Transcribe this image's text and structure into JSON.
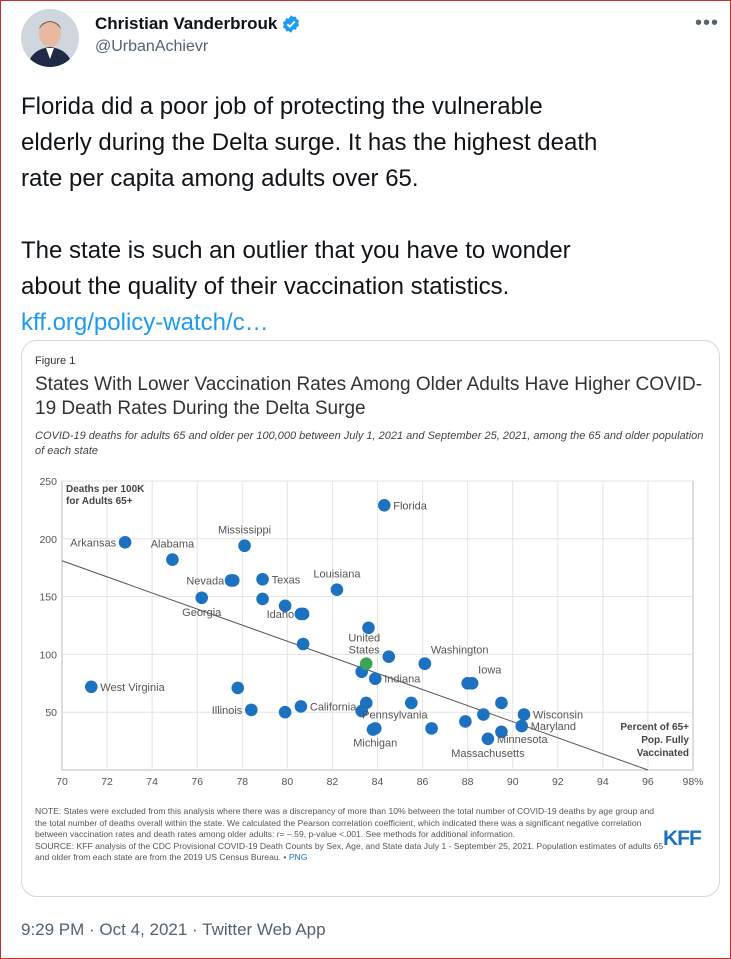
{
  "tweet": {
    "author_name": "Christian Vanderbrouk",
    "handle": "@UrbanAchievr",
    "more_label": "•••",
    "text_line1": "Florida did a poor job of protecting the vulnerable",
    "text_line2": "elderly during the Delta surge. It has the highest death",
    "text_line3": "rate per capita among adults over 65.",
    "text_line4": "The state is such an outlier that you have to wonder",
    "text_line5": "about the quality of their vaccination statistics.",
    "link_text": "kff.org/policy-watch/c…",
    "time": "9:29 PM",
    "date": "Oct 4, 2021",
    "source": "Twitter Web App",
    "separator": " · ",
    "colors": {
      "link": "#1d9bf0",
      "verified": "#1d9bf0"
    }
  },
  "figure": {
    "label": "Figure 1",
    "title": "States With Lower Vaccination Rates Among Older Adults Have Higher COVID-19 Death Rates During the Delta Surge",
    "subtitle": "COVID-19 deaths for adults 65 and older per 100,000 between July 1, 2021 and September 25, 2021, among the 65 and older population of each state",
    "note": "NOTE: States were excluded from this analysis where there was a discrepancy of more than 10% between the total number of COVID-19 deaths by age group and the total number of deaths overall within the state. We calculated the Pearson correlation coefficient, which indicated there was a significant negative correlation between vaccination rates and death rates among older adults: r= –.59, p-value <.001. See methods for additional information.",
    "source": "SOURCE: KFF analysis of the CDC Provisional COVID-19 Death Counts by Sex, Age, and State data July 1 - September 25, 2021. Population estimates of adults 65 and older from each state are from the 2019 US Census Bureau. •",
    "png_link": "PNG",
    "logo": "KFF"
  },
  "chart_data": {
    "type": "scatter",
    "ylabel_line1": "Deaths per 100K",
    "ylabel_line2": "for Adults 65+",
    "xlabel_line1": "Percent of 65+",
    "xlabel_line2": "Pop. Fully",
    "xlabel_line3": "Vaccinated",
    "xlim": [
      70,
      98
    ],
    "ylim": [
      0,
      250
    ],
    "x_ticks": [
      "70",
      "72",
      "74",
      "76",
      "78",
      "80",
      "82",
      "84",
      "86",
      "88",
      "90",
      "92",
      "94",
      "96",
      "98%"
    ],
    "y_ticks": [
      "250",
      "200",
      "150",
      "100",
      "50"
    ],
    "point_color": "#1d72c0",
    "highlight_color": "#3aa655",
    "trendline": {
      "x": [
        70,
        96
      ],
      "y": [
        181,
        0
      ]
    },
    "labeled_points": [
      {
        "label": "Florida",
        "x": 84.3,
        "y": 229,
        "anchor": "right"
      },
      {
        "label": "Mississippi",
        "x": 78.1,
        "y": 194,
        "anchor": "top"
      },
      {
        "label": "Arkansas",
        "x": 72.8,
        "y": 197,
        "anchor": "left"
      },
      {
        "label": "Alabama",
        "x": 74.9,
        "y": 182,
        "anchor": "top"
      },
      {
        "label": "Louisiana",
        "x": 82.2,
        "y": 156,
        "anchor": "top"
      },
      {
        "label": "Nevada",
        "x": 77.6,
        "y": 164,
        "anchor": "left"
      },
      {
        "label": "Texas",
        "x": 78.9,
        "y": 165,
        "anchor": "right"
      },
      {
        "label": "Georgia",
        "x": 76.2,
        "y": 149,
        "anchor": "below"
      },
      {
        "label": "Idaho",
        "x": 80.7,
        "y": 135,
        "anchor": "left"
      },
      {
        "label": "United States",
        "x": 83.5,
        "y": 92,
        "anchor": "top",
        "highlight": true
      },
      {
        "label": "Washington",
        "x": 86.1,
        "y": 92,
        "anchor": "below-right"
      },
      {
        "label": "Indiana",
        "x": 83.9,
        "y": 79,
        "anchor": "right"
      },
      {
        "label": "West Virginia",
        "x": 71.3,
        "y": 72,
        "anchor": "right"
      },
      {
        "label": "Iowa",
        "x": 88.2,
        "y": 75,
        "anchor": "below-right"
      },
      {
        "label": "Illinois",
        "x": 78.4,
        "y": 52,
        "anchor": "left"
      },
      {
        "label": "California",
        "x": 80.6,
        "y": 55,
        "anchor": "right"
      },
      {
        "label": "Wisconsin",
        "x": 90.5,
        "y": 48,
        "anchor": "right"
      },
      {
        "label": "Maryland",
        "x": 90.4,
        "y": 38,
        "anchor": "right"
      },
      {
        "label": "Pennsylvania",
        "x": 86.4,
        "y": 36,
        "anchor": "above-left"
      },
      {
        "label": "Michigan",
        "x": 83.9,
        "y": 36,
        "anchor": "below"
      },
      {
        "label": "Minnesota",
        "x": 88.9,
        "y": 27,
        "anchor": "right"
      },
      {
        "label": "Massachusetts",
        "x": 88.9,
        "y": 27,
        "anchor": "below"
      }
    ],
    "unlabeled_points": [
      {
        "x": 77.5,
        "y": 164
      },
      {
        "x": 78.9,
        "y": 148
      },
      {
        "x": 79.9,
        "y": 142
      },
      {
        "x": 80.6,
        "y": 135
      },
      {
        "x": 80.7,
        "y": 109
      },
      {
        "x": 83.6,
        "y": 123
      },
      {
        "x": 84.5,
        "y": 98
      },
      {
        "x": 83.3,
        "y": 85
      },
      {
        "x": 77.8,
        "y": 71
      },
      {
        "x": 85.5,
        "y": 58
      },
      {
        "x": 83.5,
        "y": 58
      },
      {
        "x": 83.3,
        "y": 51
      },
      {
        "x": 79.9,
        "y": 50
      },
      {
        "x": 83.8,
        "y": 35
      },
      {
        "x": 87.9,
        "y": 42
      },
      {
        "x": 88.7,
        "y": 48
      },
      {
        "x": 89.5,
        "y": 58
      },
      {
        "x": 89.5,
        "y": 33
      },
      {
        "x": 86.1,
        "y": 92
      },
      {
        "x": 88.0,
        "y": 75
      }
    ]
  }
}
